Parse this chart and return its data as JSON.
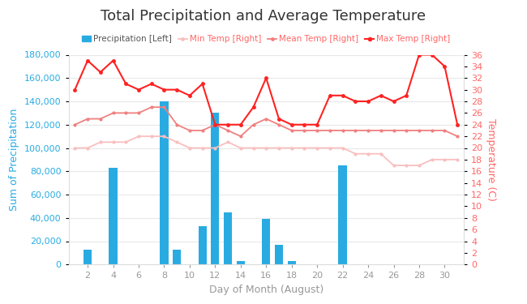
{
  "title": "Total Precipitation and Average Temperature",
  "xlabel": "Day of Month (August)",
  "ylabel_left": "Sum of Precipitation",
  "ylabel_right": "Temperature (C)",
  "days": [
    1,
    2,
    3,
    4,
    5,
    6,
    7,
    8,
    9,
    10,
    11,
    12,
    13,
    14,
    15,
    16,
    17,
    18,
    19,
    20,
    21,
    22,
    23,
    24,
    25,
    26,
    27,
    28,
    29,
    30,
    31
  ],
  "precipitation": [
    0,
    13000,
    0,
    83000,
    0,
    0,
    0,
    140000,
    13000,
    0,
    33000,
    130000,
    45000,
    3000,
    0,
    39000,
    17000,
    3000,
    0,
    0,
    0,
    85000,
    0,
    0,
    0,
    0,
    0,
    0,
    0,
    0,
    0
  ],
  "min_temp": [
    20,
    20,
    21,
    21,
    21,
    22,
    22,
    22,
    21,
    20,
    20,
    20,
    21,
    20,
    20,
    20,
    20,
    20,
    20,
    20,
    20,
    20,
    19,
    19,
    19,
    17,
    17,
    17,
    18,
    18,
    18
  ],
  "mean_temp": [
    24,
    25,
    25,
    26,
    26,
    26,
    27,
    27,
    24,
    23,
    23,
    24,
    23,
    22,
    24,
    25,
    24,
    23,
    23,
    23,
    23,
    23,
    23,
    23,
    23,
    23,
    23,
    23,
    23,
    23,
    22
  ],
  "max_temp": [
    30,
    35,
    33,
    35,
    31,
    30,
    31,
    30,
    30,
    29,
    31,
    24,
    24,
    24,
    27,
    32,
    25,
    24,
    24,
    24,
    29,
    29,
    28,
    28,
    29,
    28,
    29,
    36,
    36,
    34,
    24
  ],
  "bar_color": "#29ABE2",
  "min_temp_color": "#F9BFBF",
  "mean_temp_color": "#F08080",
  "max_temp_color": "#FF2222",
  "bg_color": "#FFFFFF",
  "grid_color": "#E8E8E8",
  "ylim_left": [
    0,
    180000
  ],
  "ylim_right": [
    0,
    36
  ],
  "xlim": [
    0.5,
    31.5
  ],
  "title_fontsize": 13,
  "label_fontsize": 9,
  "tick_fontsize": 8,
  "legend_fontsize": 7.5,
  "yticks_left": [
    0,
    20000,
    40000,
    60000,
    80000,
    100000,
    120000,
    140000,
    160000,
    180000
  ],
  "yticks_right": [
    0,
    2,
    4,
    6,
    8,
    10,
    12,
    14,
    16,
    18,
    20,
    22,
    24,
    26,
    28,
    30,
    32,
    34,
    36
  ]
}
